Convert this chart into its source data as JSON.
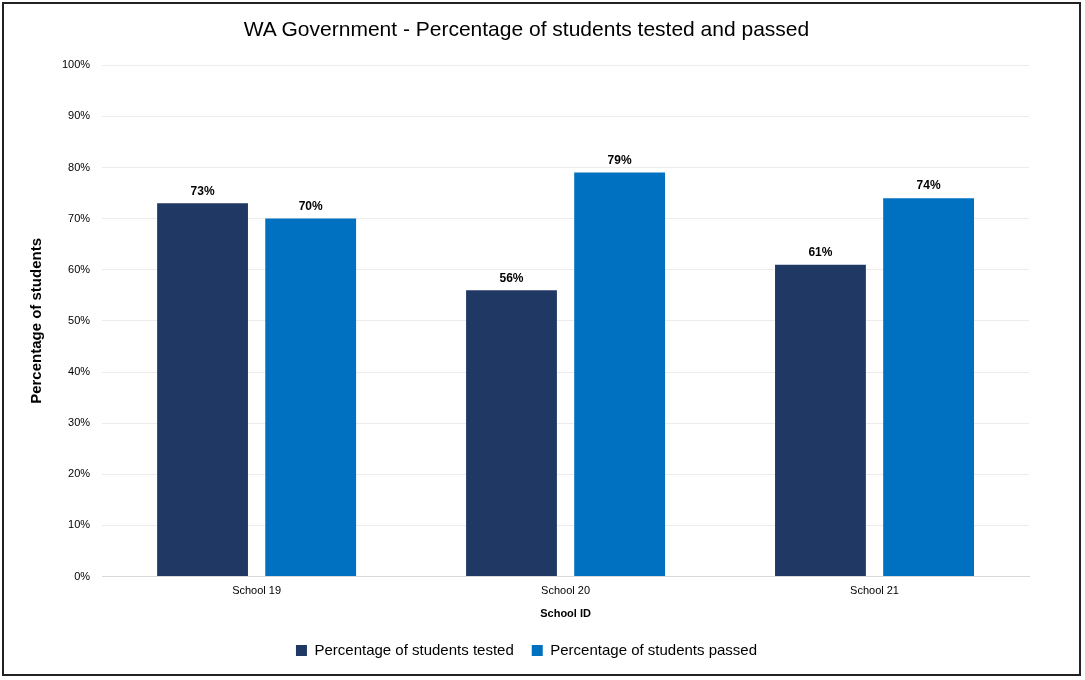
{
  "chart_data": {
    "type": "bar",
    "title": "WA Government - Percentage of students tested and passed",
    "xlabel": "School ID",
    "ylabel": "Percentage of students",
    "categories": [
      "School 19",
      "School 20",
      "School 21"
    ],
    "series": [
      {
        "name": "Percentage of students tested",
        "color": "#203864",
        "values": [
          73,
          56,
          61
        ],
        "value_labels": [
          "73%",
          "56%",
          "61%"
        ]
      },
      {
        "name": "Percentage of students passed",
        "color": "#0070c0",
        "values": [
          70,
          79,
          74
        ],
        "value_labels": [
          "70%",
          "79%",
          "74%"
        ]
      }
    ],
    "ylim": [
      0,
      100
    ],
    "yticks": [
      {
        "value": 0,
        "label": "0%"
      },
      {
        "value": 10,
        "label": "10%"
      },
      {
        "value": 20,
        "label": "20%"
      },
      {
        "value": 30,
        "label": "30%"
      },
      {
        "value": 40,
        "label": "40%"
      },
      {
        "value": 50,
        "label": "50%"
      },
      {
        "value": 60,
        "label": "60%"
      },
      {
        "value": 70,
        "label": "70%"
      },
      {
        "value": 80,
        "label": "80%"
      },
      {
        "value": 90,
        "label": "90%"
      },
      {
        "value": 100,
        "label": "100%"
      }
    ],
    "grid": "y",
    "legend": "bottom"
  }
}
